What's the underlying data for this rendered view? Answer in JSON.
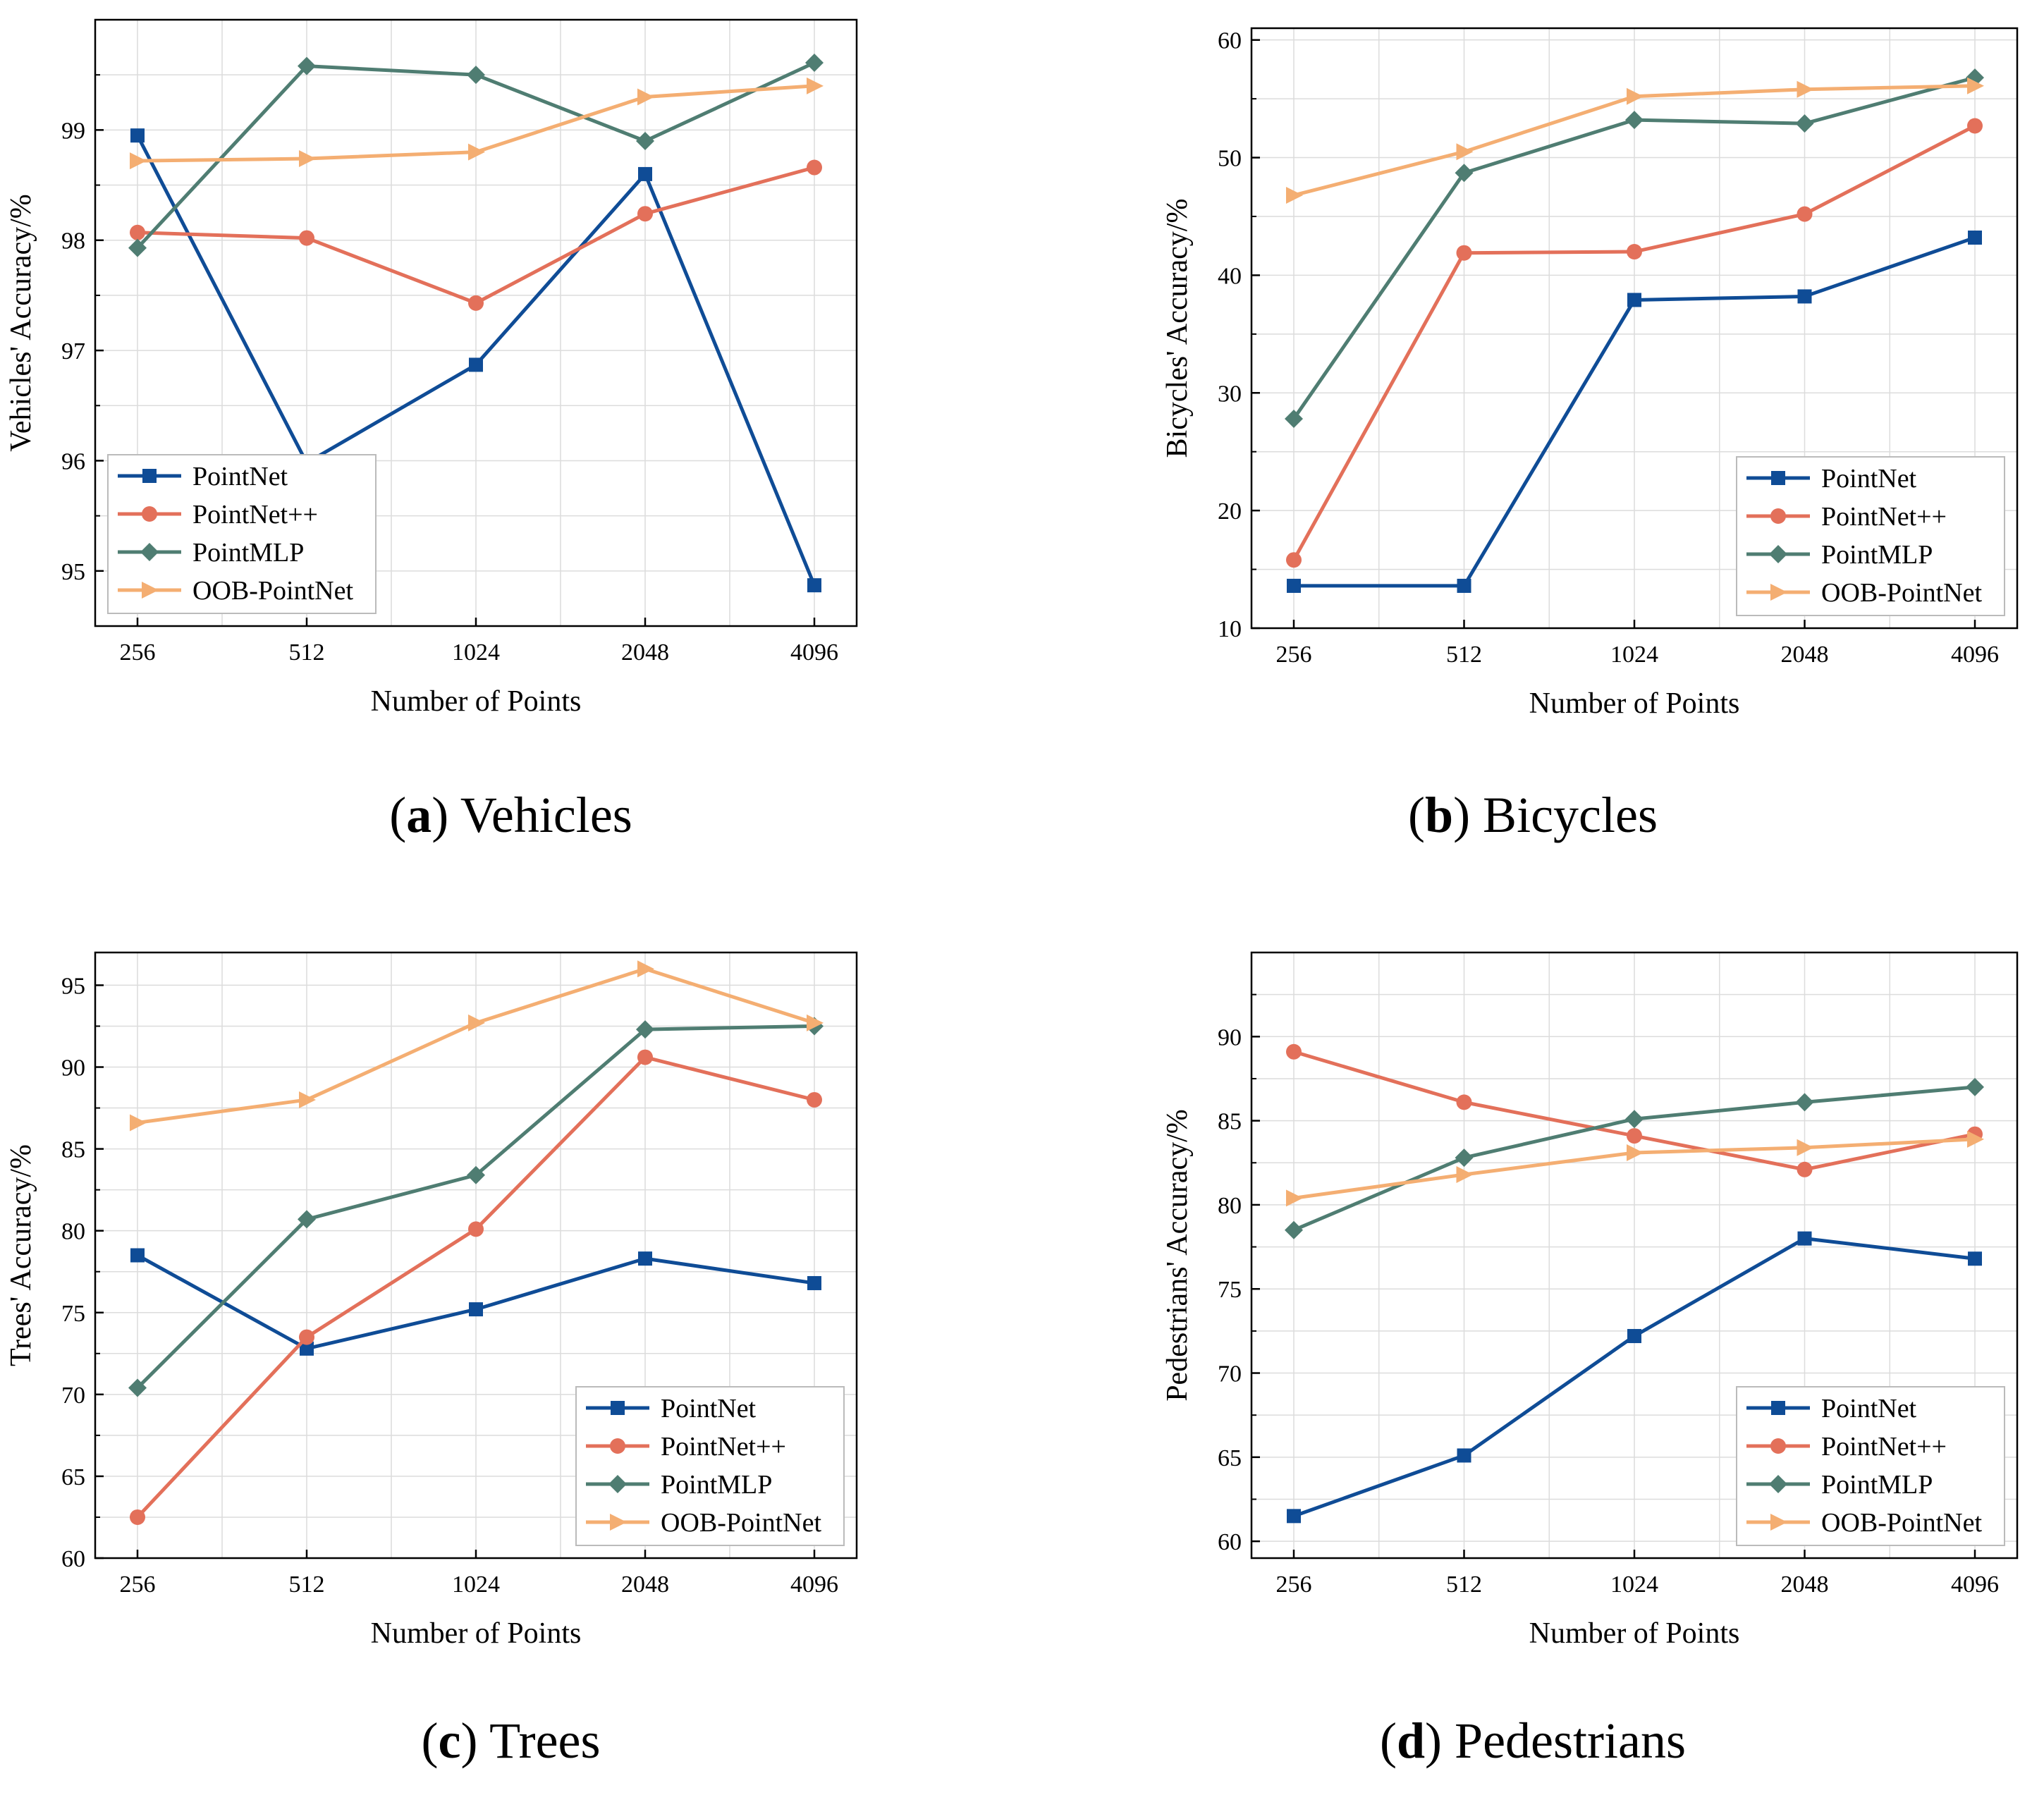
{
  "figure": {
    "colors": {
      "PointNet": "#0f4c96",
      "PointNet++": "#e3705a",
      "PointMLP": "#4f7d72",
      "OOB-PointNet": "#f4ae72",
      "grid": "#dcdcdc",
      "axis": "#000000"
    },
    "marker_icons": {
      "PointNet": "square-marker-icon",
      "PointNet++": "circle-marker-icon",
      "PointMLP": "diamond-marker-icon",
      "OOB-PointNet": "right-triangle-marker-icon"
    }
  },
  "chart_data": [
    {
      "id": "a",
      "type": "line",
      "caption_letter": "a",
      "caption_open": "(",
      "caption_close": ")",
      "caption_text": "Vehicles",
      "xlabel": "Number of Points",
      "ylabel": "Vehicles' Accuracy/%",
      "categories": [
        "256",
        "512",
        "1024",
        "2048",
        "4096"
      ],
      "ylim": [
        94.5,
        100
      ],
      "yticks": [
        95,
        96,
        97,
        98,
        99
      ],
      "grid": true,
      "legend_position": "bottom-left",
      "series": [
        {
          "name": "PointNet",
          "values": [
            98.95,
            95.98,
            96.87,
            98.6,
            94.87
          ]
        },
        {
          "name": "PointNet++",
          "values": [
            98.07,
            98.02,
            97.43,
            98.24,
            98.66
          ]
        },
        {
          "name": "PointMLP",
          "values": [
            97.93,
            99.58,
            99.5,
            98.9,
            99.61
          ]
        },
        {
          "name": "OOB-PointNet",
          "values": [
            98.72,
            98.74,
            98.8,
            99.3,
            99.4
          ]
        }
      ]
    },
    {
      "id": "b",
      "type": "line",
      "caption_letter": "b",
      "caption_open": "(",
      "caption_close": ")",
      "caption_text": "Bicycles",
      "xlabel": "Number of Points",
      "ylabel": "Bicycles' Accuracy/%",
      "categories": [
        "256",
        "512",
        "1024",
        "2048",
        "4096"
      ],
      "ylim": [
        10,
        61
      ],
      "yticks": [
        10,
        20,
        30,
        40,
        50,
        60
      ],
      "grid": true,
      "legend_position": "bottom-right",
      "series": [
        {
          "name": "PointNet",
          "values": [
            13.6,
            13.6,
            37.9,
            38.2,
            43.2
          ]
        },
        {
          "name": "PointNet++",
          "values": [
            15.8,
            41.9,
            42.0,
            45.2,
            52.7
          ]
        },
        {
          "name": "PointMLP",
          "values": [
            27.8,
            48.7,
            53.2,
            52.9,
            56.8
          ]
        },
        {
          "name": "OOB-PointNet",
          "values": [
            46.8,
            50.5,
            55.2,
            55.8,
            56.1
          ]
        }
      ]
    },
    {
      "id": "c",
      "type": "line",
      "caption_letter": "c",
      "caption_open": "(",
      "caption_close": ")",
      "caption_text": "Trees",
      "xlabel": "Number of Points",
      "ylabel": "Trees' Accuracy/%",
      "categories": [
        "256",
        "512",
        "1024",
        "2048",
        "4096"
      ],
      "ylim": [
        60,
        97
      ],
      "yticks": [
        60,
        65,
        70,
        75,
        80,
        85,
        90,
        95
      ],
      "grid": true,
      "legend_position": "bottom-right",
      "series": [
        {
          "name": "PointNet",
          "values": [
            78.5,
            72.8,
            75.2,
            78.3,
            76.8
          ]
        },
        {
          "name": "PointNet++",
          "values": [
            62.5,
            73.5,
            80.1,
            90.6,
            88.0
          ]
        },
        {
          "name": "PointMLP",
          "values": [
            70.4,
            80.7,
            83.4,
            92.3,
            92.5
          ]
        },
        {
          "name": "OOB-PointNet",
          "values": [
            86.6,
            88.0,
            92.7,
            96.0,
            92.7
          ]
        }
      ]
    },
    {
      "id": "d",
      "type": "line",
      "caption_letter": "d",
      "caption_open": "(",
      "caption_close": ")",
      "caption_text": "Pedestrians",
      "xlabel": "Number of Points",
      "ylabel": "Pedestrians' Accuracy/%",
      "categories": [
        "256",
        "512",
        "1024",
        "2048",
        "4096"
      ],
      "ylim": [
        59,
        95
      ],
      "yticks": [
        60,
        65,
        70,
        75,
        80,
        85,
        90
      ],
      "grid": true,
      "legend_position": "bottom-right",
      "series": [
        {
          "name": "PointNet",
          "values": [
            61.5,
            65.1,
            72.2,
            78.0,
            76.8
          ]
        },
        {
          "name": "PointNet++",
          "values": [
            89.1,
            86.1,
            84.1,
            82.1,
            84.2
          ]
        },
        {
          "name": "PointMLP",
          "values": [
            78.5,
            82.8,
            85.1,
            86.1,
            87.0
          ]
        },
        {
          "name": "OOB-PointNet",
          "values": [
            80.4,
            81.8,
            83.1,
            83.4,
            83.9
          ]
        }
      ]
    }
  ]
}
